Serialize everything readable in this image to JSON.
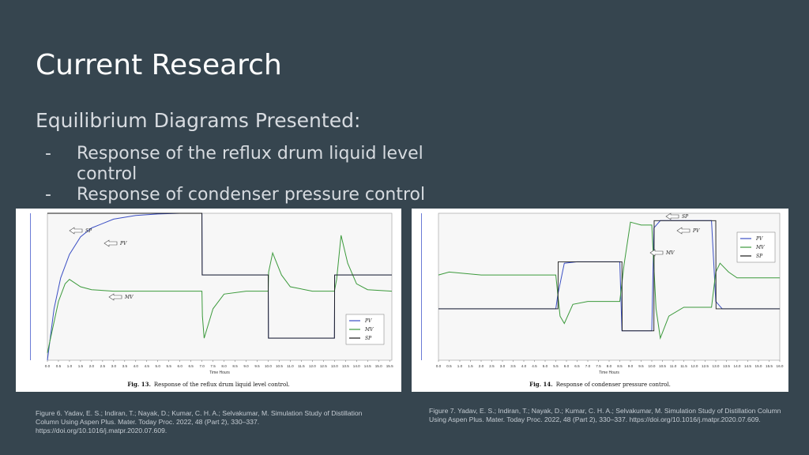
{
  "slide": {
    "title": "Current Research",
    "subtitle": "Equilibrium Diagrams Presented:",
    "bullets": [
      {
        "dash": "-",
        "text": "Response of the reflux drum liquid level control"
      },
      {
        "dash": "-",
        "text": "Response of condenser pressure control"
      }
    ]
  },
  "figures": [
    {
      "label": "Fig. 13.",
      "caption": "Response of the reflux drum liquid level control.",
      "xlabel": "Time Hours",
      "legend": [
        "PV",
        "MV",
        "SP"
      ],
      "arrows": [
        "SP",
        "PV",
        "MV"
      ],
      "colors": {
        "pv": "#3b4fc4",
        "mv": "#3c9a3c",
        "sp": "#1a1a1a"
      },
      "citation": "Figure 6. Yadav, E. S.; Indiran, T.; Nayak, D.; Kumar, C. H. A.; Selvakumar, M. Simulation Study of Distillation Column Using Aspen Plus. Mater. Today Proc. 2022, 48 (Part 2), 330–337. https://doi.org/10.1016/j.matpr.2020.07.609."
    },
    {
      "label": "Fig. 14.",
      "caption": "Response of condenser pressure control.",
      "xlabel": "Time Hours",
      "legend": [
        "PV",
        "MV",
        "SP"
      ],
      "arrows": [
        "SP",
        "PV",
        "MV"
      ],
      "colors": {
        "pv": "#3b4fc4",
        "mv": "#3c9a3c",
        "sp": "#1a1a1a"
      },
      "citation": "Figure 7. Yadav, E. S.; Indiran, T.; Nayak, D.; Kumar, C. H. A.; Selvakumar, M. Simulation Study of Distillation Column Using Aspen Plus. Mater. Today Proc. 2022, 48 (Part 2), 330–337. https://doi.org/10.1016/j.matpr.2020.07.609."
    }
  ],
  "chart_data": [
    {
      "type": "line",
      "xlabel": "Time Hours",
      "xlim": [
        0,
        15.6
      ],
      "x_ticks": [
        "0.0",
        "0.5",
        "1.0",
        "1.5",
        "2.0",
        "2.5",
        "3.0",
        "3.5",
        "4.0",
        "4.5",
        "5.0",
        "5.5",
        "6.0",
        "6.5",
        "7.0",
        "7.5",
        "8.0",
        "8.5",
        "9.0",
        "9.5",
        "10.0",
        "10.5",
        "11.0",
        "11.5",
        "12.0",
        "12.5",
        "13.0",
        "13.5",
        "14.0",
        "14.5",
        "15.0",
        "15.5"
      ],
      "ylim": [
        0,
        1
      ],
      "legend_position": "bottom-right",
      "series": [
        {
          "name": "PV",
          "x": [
            0,
            0.3,
            0.6,
            1,
            1.5,
            2,
            3,
            4,
            5,
            6,
            7,
            7.01,
            10,
            10.01,
            13,
            13.01,
            15.6
          ],
          "y": [
            0,
            0.35,
            0.56,
            0.72,
            0.84,
            0.9,
            0.96,
            0.985,
            0.995,
            1,
            1,
            0.58,
            0.58,
            0.15,
            0.15,
            0.58,
            0.58
          ]
        },
        {
          "name": "MV",
          "x": [
            0,
            0.5,
            0.8,
            1,
            1.5,
            2,
            3,
            5,
            7,
            7.02,
            7.1,
            7.5,
            8,
            9,
            10,
            10.02,
            10.2,
            10.6,
            11,
            12,
            13,
            13.1,
            13.3,
            13.6,
            14,
            14.5,
            15.6
          ],
          "y": [
            0.05,
            0.4,
            0.52,
            0.55,
            0.5,
            0.48,
            0.47,
            0.47,
            0.47,
            0.3,
            0.15,
            0.35,
            0.45,
            0.47,
            0.47,
            0.6,
            0.73,
            0.58,
            0.5,
            0.47,
            0.47,
            0.55,
            0.85,
            0.66,
            0.52,
            0.48,
            0.47
          ]
        },
        {
          "name": "SP",
          "x": [
            0,
            7,
            7.01,
            10,
            10.01,
            13,
            13.01,
            15.6
          ],
          "y": [
            1,
            1,
            0.58,
            0.58,
            0.15,
            0.15,
            0.58,
            0.58
          ]
        }
      ]
    },
    {
      "type": "line",
      "xlabel": "Time Hours",
      "xlim": [
        0,
        16
      ],
      "x_ticks": [
        "0.0",
        "0.5",
        "1.0",
        "1.5",
        "2.0",
        "2.5",
        "3.0",
        "3.5",
        "4.0",
        "4.5",
        "5.0",
        "5.5",
        "6.0",
        "6.5",
        "7.0",
        "7.5",
        "8.0",
        "8.5",
        "9.0",
        "9.5",
        "10.0",
        "10.5",
        "11.0",
        "11.5",
        "12.0",
        "12.5",
        "13.0",
        "13.5",
        "14.0",
        "14.5",
        "15.0",
        "15.5",
        "16.0"
      ],
      "ylim": [
        0,
        1
      ],
      "legend_position": "top-right",
      "series": [
        {
          "name": "PV",
          "x": [
            0,
            5.5,
            5.6,
            5.9,
            6.5,
            8.5,
            8.6,
            9,
            10,
            10.1,
            10.4,
            12.8,
            13,
            13.3,
            14,
            16
          ],
          "y": [
            0.35,
            0.35,
            0.45,
            0.66,
            0.67,
            0.67,
            0.2,
            0.2,
            0.2,
            0.9,
            0.95,
            0.95,
            0.4,
            0.35,
            0.35,
            0.35
          ]
        },
        {
          "name": "MV",
          "x": [
            0,
            0.5,
            2,
            4,
            5.5,
            5.7,
            5.9,
            6.3,
            7,
            8,
            8.5,
            8.7,
            9,
            9.5,
            10,
            10.2,
            10.4,
            10.8,
            11.5,
            12.8,
            13,
            13.2,
            13.6,
            14,
            14.5,
            16
          ],
          "y": [
            0.58,
            0.6,
            0.58,
            0.58,
            0.58,
            0.3,
            0.25,
            0.38,
            0.4,
            0.4,
            0.4,
            0.65,
            0.94,
            0.92,
            0.92,
            0.35,
            0.15,
            0.3,
            0.36,
            0.36,
            0.6,
            0.66,
            0.6,
            0.56,
            0.56,
            0.56
          ]
        },
        {
          "name": "SP",
          "x": [
            0,
            5.6,
            5.61,
            8.6,
            8.61,
            10.1,
            10.11,
            13,
            13.01,
            16
          ],
          "y": [
            0.35,
            0.35,
            0.67,
            0.67,
            0.2,
            0.2,
            0.95,
            0.95,
            0.35,
            0.35
          ]
        }
      ]
    }
  ]
}
